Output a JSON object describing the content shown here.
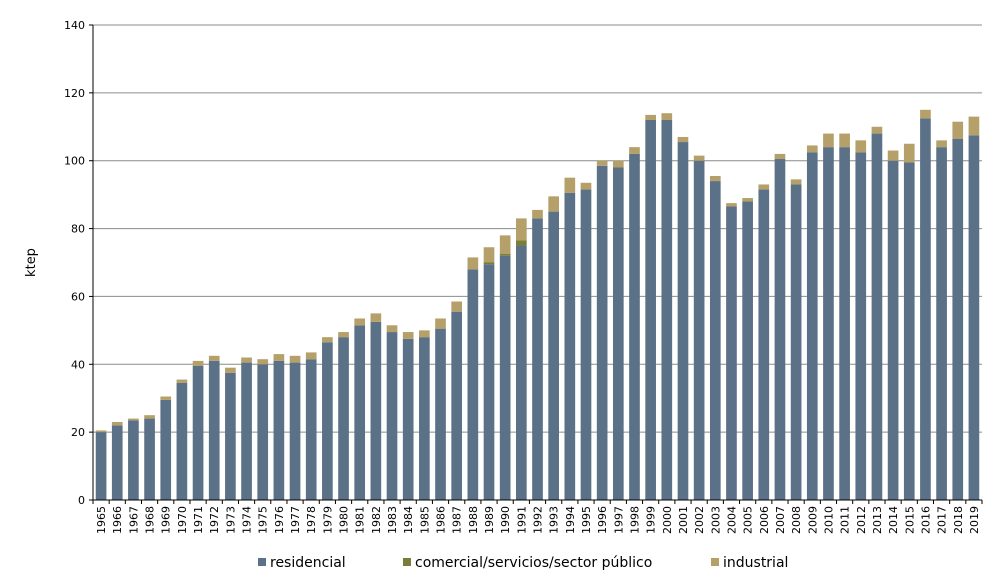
{
  "chart_data": {
    "type": "bar",
    "stacked": true,
    "title": "",
    "xlabel": "",
    "ylabel": "ktep",
    "ylim": [
      0,
      140
    ],
    "yticks": [
      0,
      20,
      40,
      60,
      80,
      100,
      120,
      140
    ],
    "grid": true,
    "legend_position": "bottom",
    "categories": [
      "1965",
      "1966",
      "1967",
      "1968",
      "1969",
      "1970",
      "1971",
      "1972",
      "1973",
      "1974",
      "1975",
      "1976",
      "1977",
      "1978",
      "1979",
      "1980",
      "1981",
      "1982",
      "1983",
      "1984",
      "1985",
      "1986",
      "1987",
      "1988",
      "1989",
      "1990",
      "1991",
      "1992",
      "1993",
      "1994",
      "1995",
      "1996",
      "1997",
      "1998",
      "1999",
      "2000",
      "2001",
      "2002",
      "2003",
      "2004",
      "2005",
      "2006",
      "2007",
      "2008",
      "2009",
      "2010",
      "2011",
      "2012",
      "2013",
      "2014",
      "2015",
      "2016",
      "2017",
      "2018",
      "2019"
    ],
    "series": [
      {
        "name": "residencial",
        "color": "#5b7187",
        "values": [
          20,
          22,
          23.5,
          24,
          29.5,
          34.5,
          39.5,
          41,
          37.5,
          40.5,
          40,
          41,
          40.5,
          41.5,
          46.5,
          48,
          51.5,
          52.5,
          49.5,
          47.5,
          48,
          50.5,
          55.5,
          68,
          69.5,
          72,
          75,
          83,
          85,
          90.5,
          91.5,
          98.5,
          98,
          102,
          112,
          112,
          105.5,
          100,
          94,
          86.5,
          88,
          91.5,
          100.5,
          93,
          102.5,
          104,
          104,
          102.5,
          108,
          100,
          99.5,
          112.5,
          104,
          106.5,
          107.5
        ]
      },
      {
        "name": "comercial/servicios/sector público",
        "color": "#7a7d38",
        "values": [
          0,
          0,
          0,
          0,
          0,
          0,
          0,
          0,
          0,
          0,
          0,
          0,
          0,
          0,
          0,
          0,
          0,
          0,
          0,
          0,
          0,
          0,
          0,
          0,
          0.5,
          0.5,
          1.5,
          0,
          0,
          0,
          0,
          0,
          0,
          0,
          0,
          0,
          0,
          0,
          0,
          0,
          0,
          0,
          0,
          0,
          0,
          0,
          0,
          0,
          0,
          0,
          0,
          0,
          0,
          0,
          0
        ]
      },
      {
        "name": "industrial",
        "color": "#b5a069",
        "values": [
          0.5,
          1,
          0.5,
          1,
          1,
          1,
          1.5,
          1.5,
          1.5,
          1.5,
          1.5,
          2,
          2,
          2,
          1.5,
          1.5,
          2,
          2.5,
          2,
          2,
          2,
          3,
          3,
          3.5,
          4.5,
          5.5,
          6.5,
          2.5,
          4.5,
          4.5,
          2,
          1.5,
          2,
          2,
          1.5,
          2,
          1.5,
          1.5,
          1.5,
          1,
          1,
          1.5,
          1.5,
          1.5,
          2,
          4,
          4,
          3.5,
          2,
          3,
          5.5,
          2.5,
          2,
          5,
          5.5
        ]
      }
    ]
  }
}
